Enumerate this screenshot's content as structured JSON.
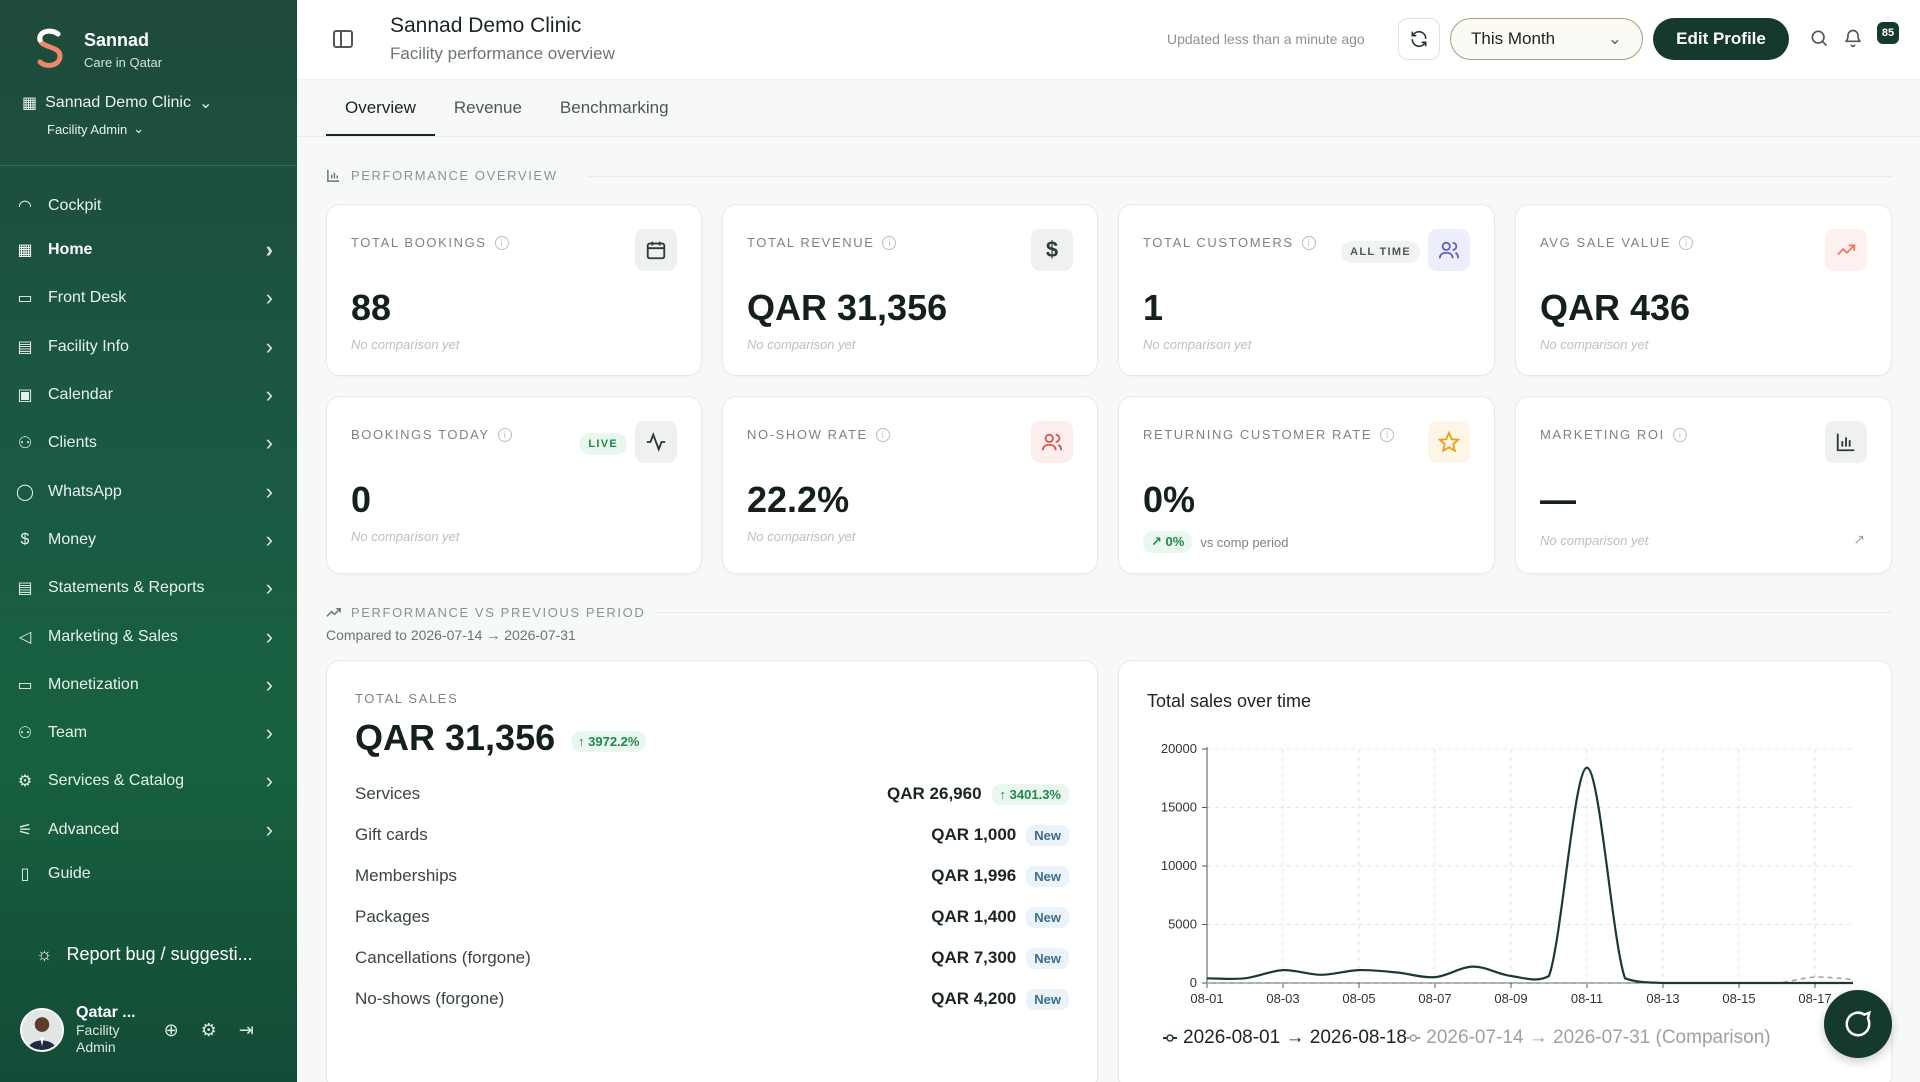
{
  "brand": {
    "name": "Sannad",
    "tagline": "Care in Qatar"
  },
  "sidebar": {
    "clinic": "Sannad Demo Clinic",
    "role": "Facility Admin",
    "items": [
      {
        "label": "Cockpit",
        "icon": "gauge-icon",
        "chevron": false,
        "active": false
      },
      {
        "label": "Home",
        "icon": "grid-icon",
        "chevron": true,
        "active": true
      },
      {
        "label": "Front Desk",
        "icon": "monitor-icon",
        "chevron": true,
        "active": false
      },
      {
        "label": "Facility Info",
        "icon": "building-icon",
        "chevron": true,
        "active": false
      },
      {
        "label": "Calendar",
        "icon": "calendar-icon",
        "chevron": true,
        "active": false
      },
      {
        "label": "Clients",
        "icon": "users-icon",
        "chevron": true,
        "active": false
      },
      {
        "label": "WhatsApp",
        "icon": "chat-icon",
        "chevron": true,
        "active": false
      },
      {
        "label": "Money",
        "icon": "dollar-icon",
        "chevron": true,
        "active": false
      },
      {
        "label": "Statements & Reports",
        "icon": "report-icon",
        "chevron": true,
        "active": false
      },
      {
        "label": "Marketing & Sales",
        "icon": "megaphone-icon",
        "chevron": true,
        "active": false
      },
      {
        "label": "Monetization",
        "icon": "card-icon",
        "chevron": true,
        "active": false
      },
      {
        "label": "Team",
        "icon": "team-icon",
        "chevron": true,
        "active": false
      },
      {
        "label": "Services & Catalog",
        "icon": "cog-icon",
        "chevron": true,
        "active": false
      },
      {
        "label": "Advanced",
        "icon": "sliders-icon",
        "chevron": true,
        "active": false
      },
      {
        "label": "Guide",
        "icon": "book-icon",
        "chevron": false,
        "active": false
      }
    ],
    "report_bug": "Report bug / suggesti...",
    "user": {
      "name": "Qatar ...",
      "role_line1": "Facility",
      "role_line2": "Admin"
    }
  },
  "header": {
    "title": "Sannad Demo Clinic",
    "subtitle": "Facility performance overview",
    "updated": "Updated less than a minute ago",
    "period": "This Month",
    "edit_profile": "Edit Profile",
    "badge": "85"
  },
  "tabs": [
    "Overview",
    "Revenue",
    "Benchmarking"
  ],
  "sections": {
    "performance": "PERFORMANCE OVERVIEW",
    "vs_previous": "PERFORMANCE VS PREVIOUS PERIOD",
    "compared": "Compared to 2026-07-14 → 2026-07-31"
  },
  "kpis": {
    "total_bookings": {
      "label": "TOTAL BOOKINGS",
      "value": "88",
      "note": "No comparison yet"
    },
    "total_revenue": {
      "label": "TOTAL REVENUE",
      "value": "QAR 31,356",
      "note": "No comparison yet"
    },
    "total_customers": {
      "label": "TOTAL CUSTOMERS",
      "value": "1",
      "note": "No comparison yet",
      "pill": "ALL TIME"
    },
    "avg_sale": {
      "label": "AVG SALE VALUE",
      "value": "QAR 436",
      "note": "No comparison yet"
    },
    "bookings_today": {
      "label": "BOOKINGS TODAY",
      "value": "0",
      "note": "No comparison yet",
      "pill": "LIVE"
    },
    "no_show": {
      "label": "NO-SHOW RATE",
      "value": "22.2%",
      "note": "No comparison yet"
    },
    "returning": {
      "label": "RETURNING CUSTOMER RATE",
      "value": "0%",
      "trend": "0%",
      "trend_text": "vs comp period"
    },
    "marketing_roi": {
      "label": "MARKETING ROI",
      "value": "—",
      "note": "No comparison yet"
    }
  },
  "total_sales": {
    "label": "TOTAL SALES",
    "value": "QAR 31,356",
    "change": "3972.2%",
    "rows": [
      {
        "name": "Services",
        "amount": "QAR 26,960",
        "tag": "3401.3%",
        "tag_type": "up"
      },
      {
        "name": "Gift cards",
        "amount": "QAR 1,000",
        "tag": "New",
        "tag_type": "new"
      },
      {
        "name": "Memberships",
        "amount": "QAR 1,996",
        "tag": "New",
        "tag_type": "new"
      },
      {
        "name": "Packages",
        "amount": "QAR 1,400",
        "tag": "New",
        "tag_type": "new"
      },
      {
        "name": "Cancellations (forgone)",
        "amount": "QAR 7,300",
        "tag": "New",
        "tag_type": "new"
      },
      {
        "name": "No-shows (forgone)",
        "amount": "QAR 4,200",
        "tag": "New",
        "tag_type": "new"
      }
    ]
  },
  "chart_data": {
    "type": "line",
    "title": "Total sales over time",
    "x": [
      "08-01",
      "08-02",
      "08-03",
      "08-04",
      "08-05",
      "08-06",
      "08-07",
      "08-08",
      "08-09",
      "08-10",
      "08-11",
      "08-12",
      "08-13",
      "08-14",
      "08-15",
      "08-16",
      "08-17",
      "08-18"
    ],
    "x_tick_labels": [
      "08-01",
      "08-03",
      "08-05",
      "08-07",
      "08-09",
      "08-11",
      "08-13",
      "08-15",
      "08-17"
    ],
    "ylim": [
      0,
      20000
    ],
    "y_ticks": [
      0,
      5000,
      10000,
      15000,
      20000
    ],
    "grid": true,
    "series": [
      {
        "name": "2026-08-01 → 2026-08-18",
        "color": "#1d3a2f",
        "values": [
          400,
          400,
          1100,
          700,
          1100,
          900,
          500,
          1400,
          600,
          600,
          18400,
          400,
          0,
          0,
          0,
          0,
          0,
          0
        ]
      },
      {
        "name": "2026-07-14 → 2026-07-31 (Comparison)",
        "color": "#9aa3a0",
        "dashed": true,
        "values": [
          0,
          0,
          0,
          0,
          0,
          0,
          0,
          0,
          0,
          0,
          0,
          0,
          0,
          0,
          0,
          0,
          500,
          300
        ]
      }
    ],
    "legend_position": "bottom"
  }
}
